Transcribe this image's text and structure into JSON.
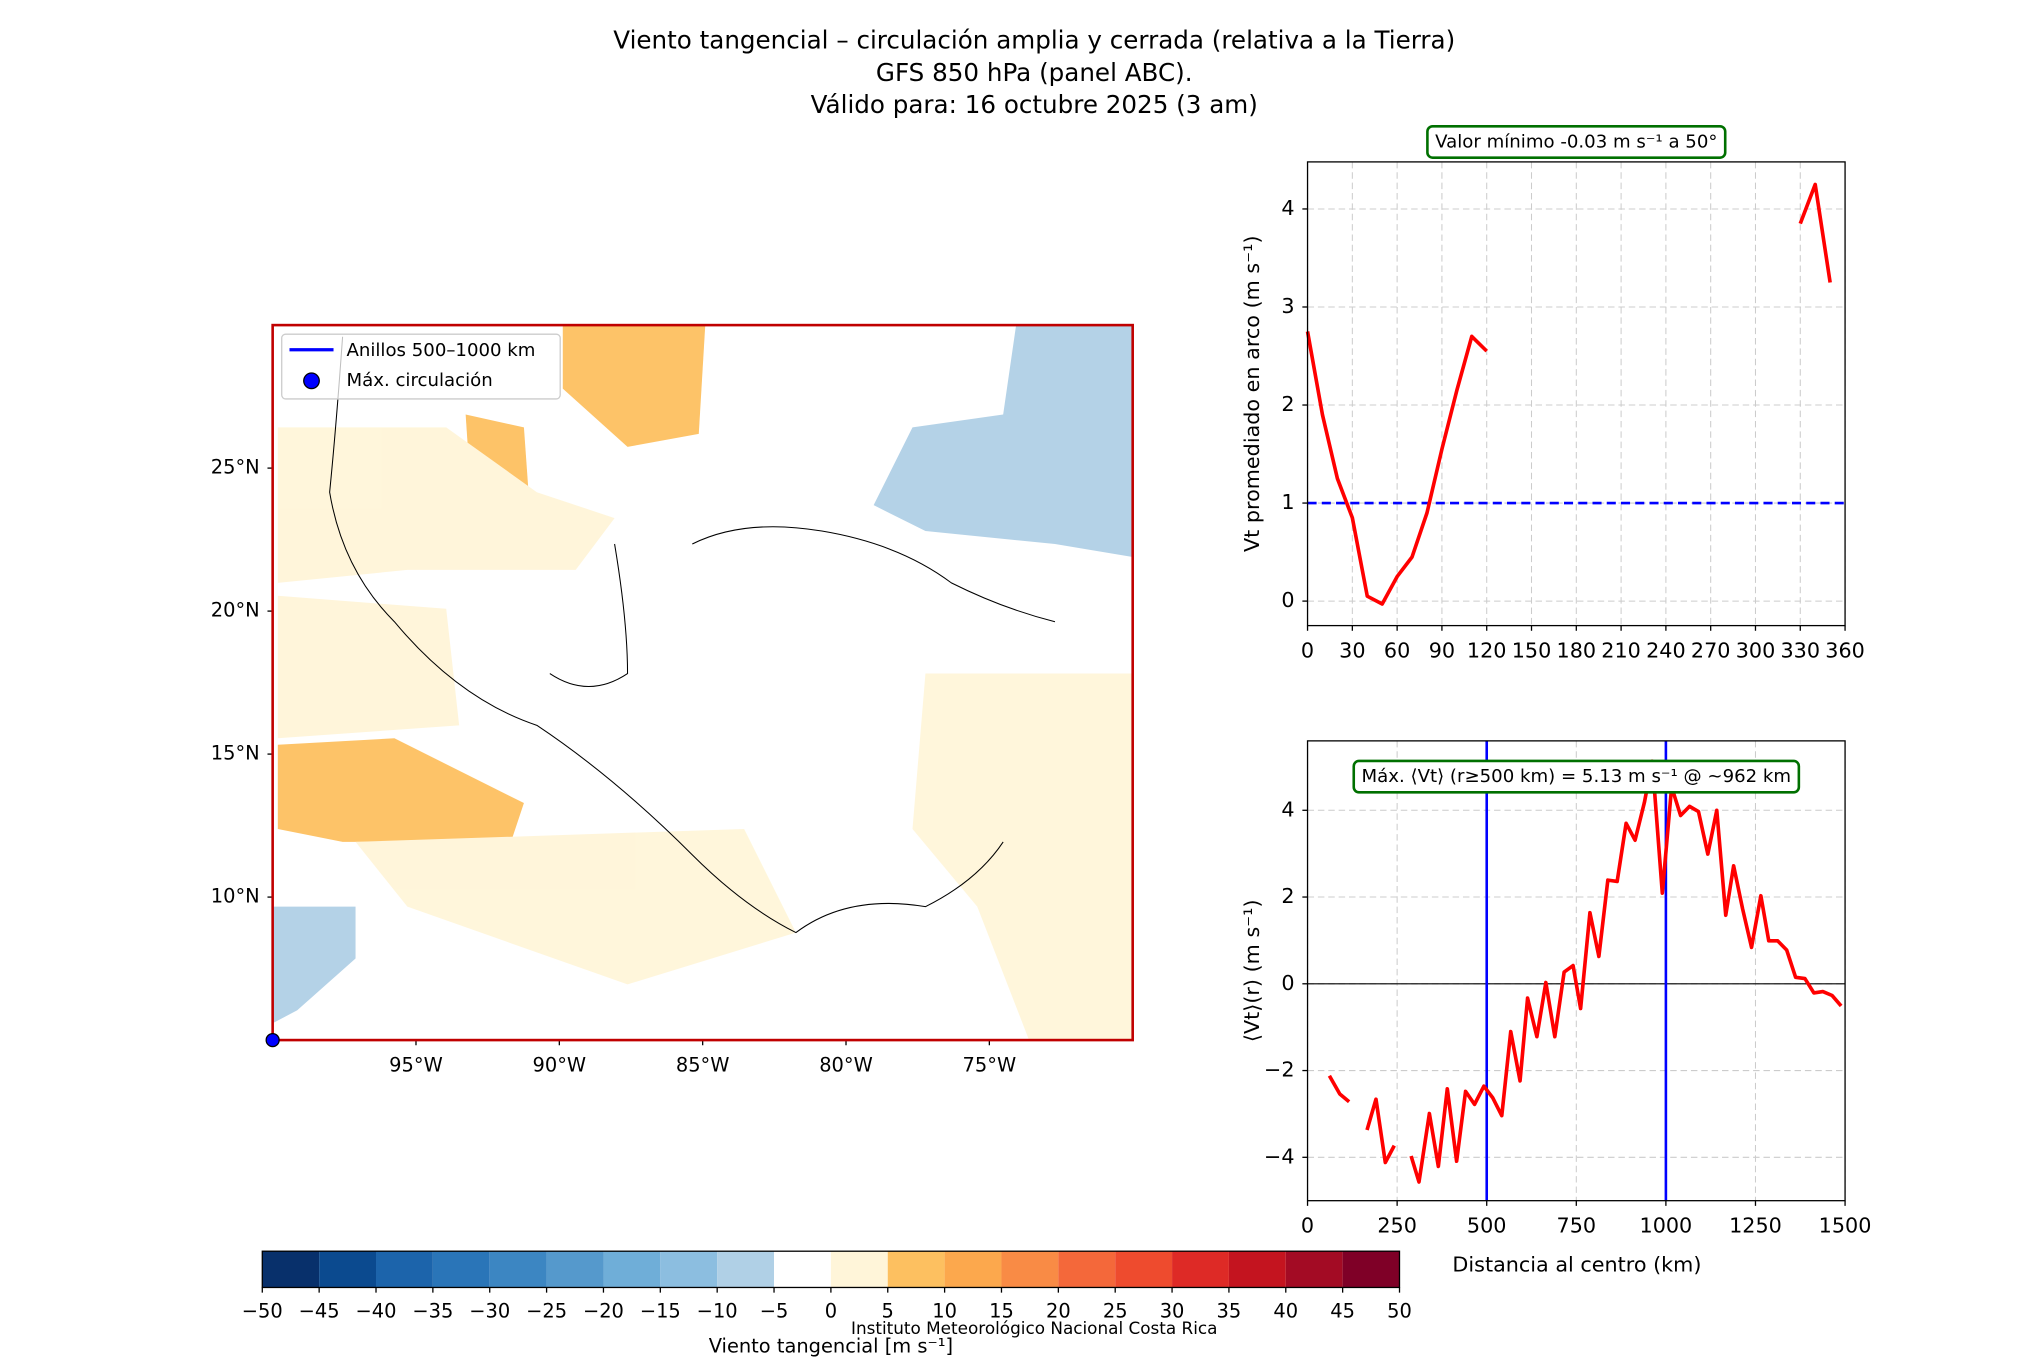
{
  "title": [
    "Viento tangencial – circulación amplia y cerrada (relativa a la Tierra)",
    "GFS 850 hPa (panel ABC).",
    "Válido para: 16 octubre 2025 (3 am)"
  ],
  "footer": "Instituto Meteorológico Nacional Costa Rica",
  "chart_data": [
    {
      "type": "map",
      "xlim": [
        -100,
        -70
      ],
      "ylim": [
        5,
        30
      ],
      "xticks": [
        {
          "value": -95,
          "label": "95°W"
        },
        {
          "value": -90,
          "label": "90°W"
        },
        {
          "value": -85,
          "label": "85°W"
        },
        {
          "value": -80,
          "label": "80°W"
        },
        {
          "value": -75,
          "label": "75°W"
        }
      ],
      "yticks": [
        {
          "value": 10,
          "label": "10°N"
        },
        {
          "value": 15,
          "label": "15°N"
        },
        {
          "value": 20,
          "label": "20°N"
        },
        {
          "value": 25,
          "label": "25°N"
        }
      ],
      "border_color": "#c00000",
      "legend": [
        {
          "name": "Anillos 500–1000 km",
          "color": "#0000ff"
        },
        {
          "name": "Máx. circulación",
          "color": "#0000ff"
        }
      ],
      "max_circulation": {
        "lon": -100,
        "lat": 5
      },
      "colorbar": {
        "label": "Viento tangencial [m s⁻¹]",
        "ticks": [
          {
            "value": -50,
            "label": "−50"
          },
          {
            "value": -45,
            "label": "−45"
          },
          {
            "value": -40,
            "label": "−40"
          },
          {
            "value": -35,
            "label": "−35"
          },
          {
            "value": -30,
            "label": "−30"
          },
          {
            "value": -25,
            "label": "−25"
          },
          {
            "value": -20,
            "label": "−20"
          },
          {
            "value": -15,
            "label": "−15"
          },
          {
            "value": -10,
            "label": "−10"
          },
          {
            "value": -5,
            "label": "−5"
          },
          0,
          5,
          10,
          15,
          20,
          25,
          30,
          35,
          40,
          45,
          50
        ],
        "colors": [
          "#08306b",
          "#0b4a8f",
          "#1c64ab",
          "#2a75b8",
          "#3c86c2",
          "#5599cc",
          "#6faed8",
          "#8cbee0",
          "#b0d0e6",
          "#ffffff",
          "#fff5d9",
          "#fdc060",
          "#fca84d",
          "#f98b45",
          "#f4683a",
          "#ee4b2e",
          "#de2a26",
          "#c4141f",
          "#a30b24",
          "#7f0027"
        ]
      }
    },
    {
      "type": "line",
      "annotation": "Valor mínimo -0.03 m s⁻¹ a 50°",
      "ylabel": "Vt promediado en arco (m s⁻¹)",
      "x": [
        0,
        10,
        20,
        30,
        40,
        50,
        60,
        70,
        80,
        90,
        100,
        110,
        120,
        130,
        320,
        330,
        340,
        350
      ],
      "series": [
        {
          "color": "#ff0000",
          "values": [
            2.75,
            1.9,
            1.25,
            0.85,
            0.05,
            -0.03,
            0.25,
            0.45,
            0.9,
            1.55,
            2.15,
            2.7,
            2.55,
            null,
            null,
            3.85,
            4.25,
            3.25
          ]
        }
      ],
      "xlim": [
        0,
        360
      ],
      "ylim": [
        -0.25,
        4.48
      ],
      "xticks": [
        0,
        30,
        60,
        90,
        120,
        150,
        180,
        210,
        240,
        270,
        300,
        330,
        360
      ],
      "yticks": [
        0,
        1,
        2,
        3,
        4
      ],
      "grid": true,
      "hlines": [
        1
      ],
      "hline_color": "#0000ff",
      "hline_dashed": true
    },
    {
      "type": "line",
      "annotation": "Máx. ⟨Vt⟩ (r≥500 km) = 5.13 m s⁻¹ @ ~962 km",
      "ylabel": "⟨Vt⟩(r) (m s⁻¹)",
      "xlabel": "Distancia al centro (km)",
      "x": [
        61,
        90,
        116,
        141,
        166,
        191,
        217,
        242,
        266,
        289,
        311,
        340,
        365,
        390,
        416,
        441,
        466,
        492,
        517,
        542,
        567,
        593,
        614,
        640,
        665,
        690,
        716,
        741,
        762,
        788,
        813,
        838,
        864,
        889,
        914,
        940,
        962,
        990,
        1016,
        1041,
        1066,
        1091,
        1117,
        1142,
        1167,
        1189,
        1214,
        1239,
        1265,
        1287,
        1312,
        1337,
        1362,
        1388,
        1413,
        1438,
        1464,
        1489
      ],
      "series": [
        {
          "color": "#ff0000",
          "values": [
            -2.12,
            -2.54,
            -2.72,
            null,
            -3.37,
            -2.66,
            -4.12,
            -3.73,
            null,
            -3.97,
            -4.57,
            -2.99,
            -4.21,
            -2.42,
            -4.09,
            -2.48,
            -2.78,
            -2.36,
            -2.63,
            -3.04,
            -1.1,
            -2.24,
            -0.33,
            -1.22,
            0.03,
            -1.22,
            0.27,
            0.42,
            -0.57,
            1.64,
            0.63,
            2.39,
            2.36,
            3.7,
            3.31,
            4.18,
            5.13,
            2.09,
            4.54,
            3.88,
            4.09,
            3.97,
            2.99,
            4.0,
            1.58,
            2.72,
            1.73,
            0.84,
            2.03,
            0.99,
            0.99,
            0.78,
            0.15,
            0.12,
            -0.21,
            -0.18,
            -0.27,
            -0.51
          ]
        }
      ],
      "xlim": [
        0,
        1500
      ],
      "ylim": [
        -5,
        5.6
      ],
      "xticks": [
        0,
        250,
        500,
        750,
        1000,
        1250,
        1500
      ],
      "yticks": [
        {
          "value": -4,
          "label": "−4"
        },
        {
          "value": -2,
          "label": "−2"
        },
        0,
        2,
        4
      ],
      "grid": true,
      "hlines": [
        0
      ],
      "hline_color": "#000000",
      "hline_dashed": false,
      "vlines": [
        500,
        1000
      ],
      "vline_color": "#0000ff"
    }
  ]
}
